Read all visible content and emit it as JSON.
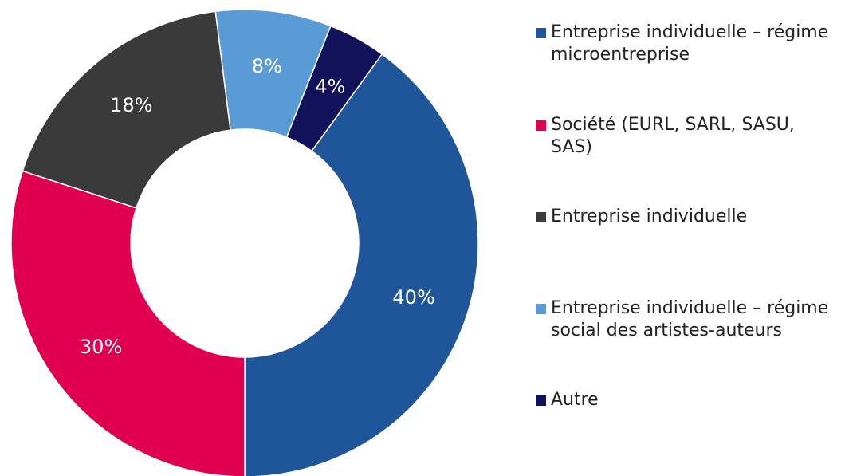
{
  "chart_data": {
    "type": "donut",
    "categories": [
      "Entreprise individuelle – régime microentreprise",
      "Société (EURL, SARL, SASU, SAS)",
      "Entreprise individuelle",
      "Entreprise individuelle – régime social des artistes-auteurs",
      "Autre"
    ],
    "values": [
      40,
      30,
      18,
      8,
      4
    ],
    "value_labels": [
      "40%",
      "30%",
      "18%",
      "8%",
      "4%"
    ],
    "colors": [
      "#1f5599",
      "#e0004f",
      "#3a3a3a",
      "#5b9bd5",
      "#12125a"
    ],
    "legend": "right"
  }
}
